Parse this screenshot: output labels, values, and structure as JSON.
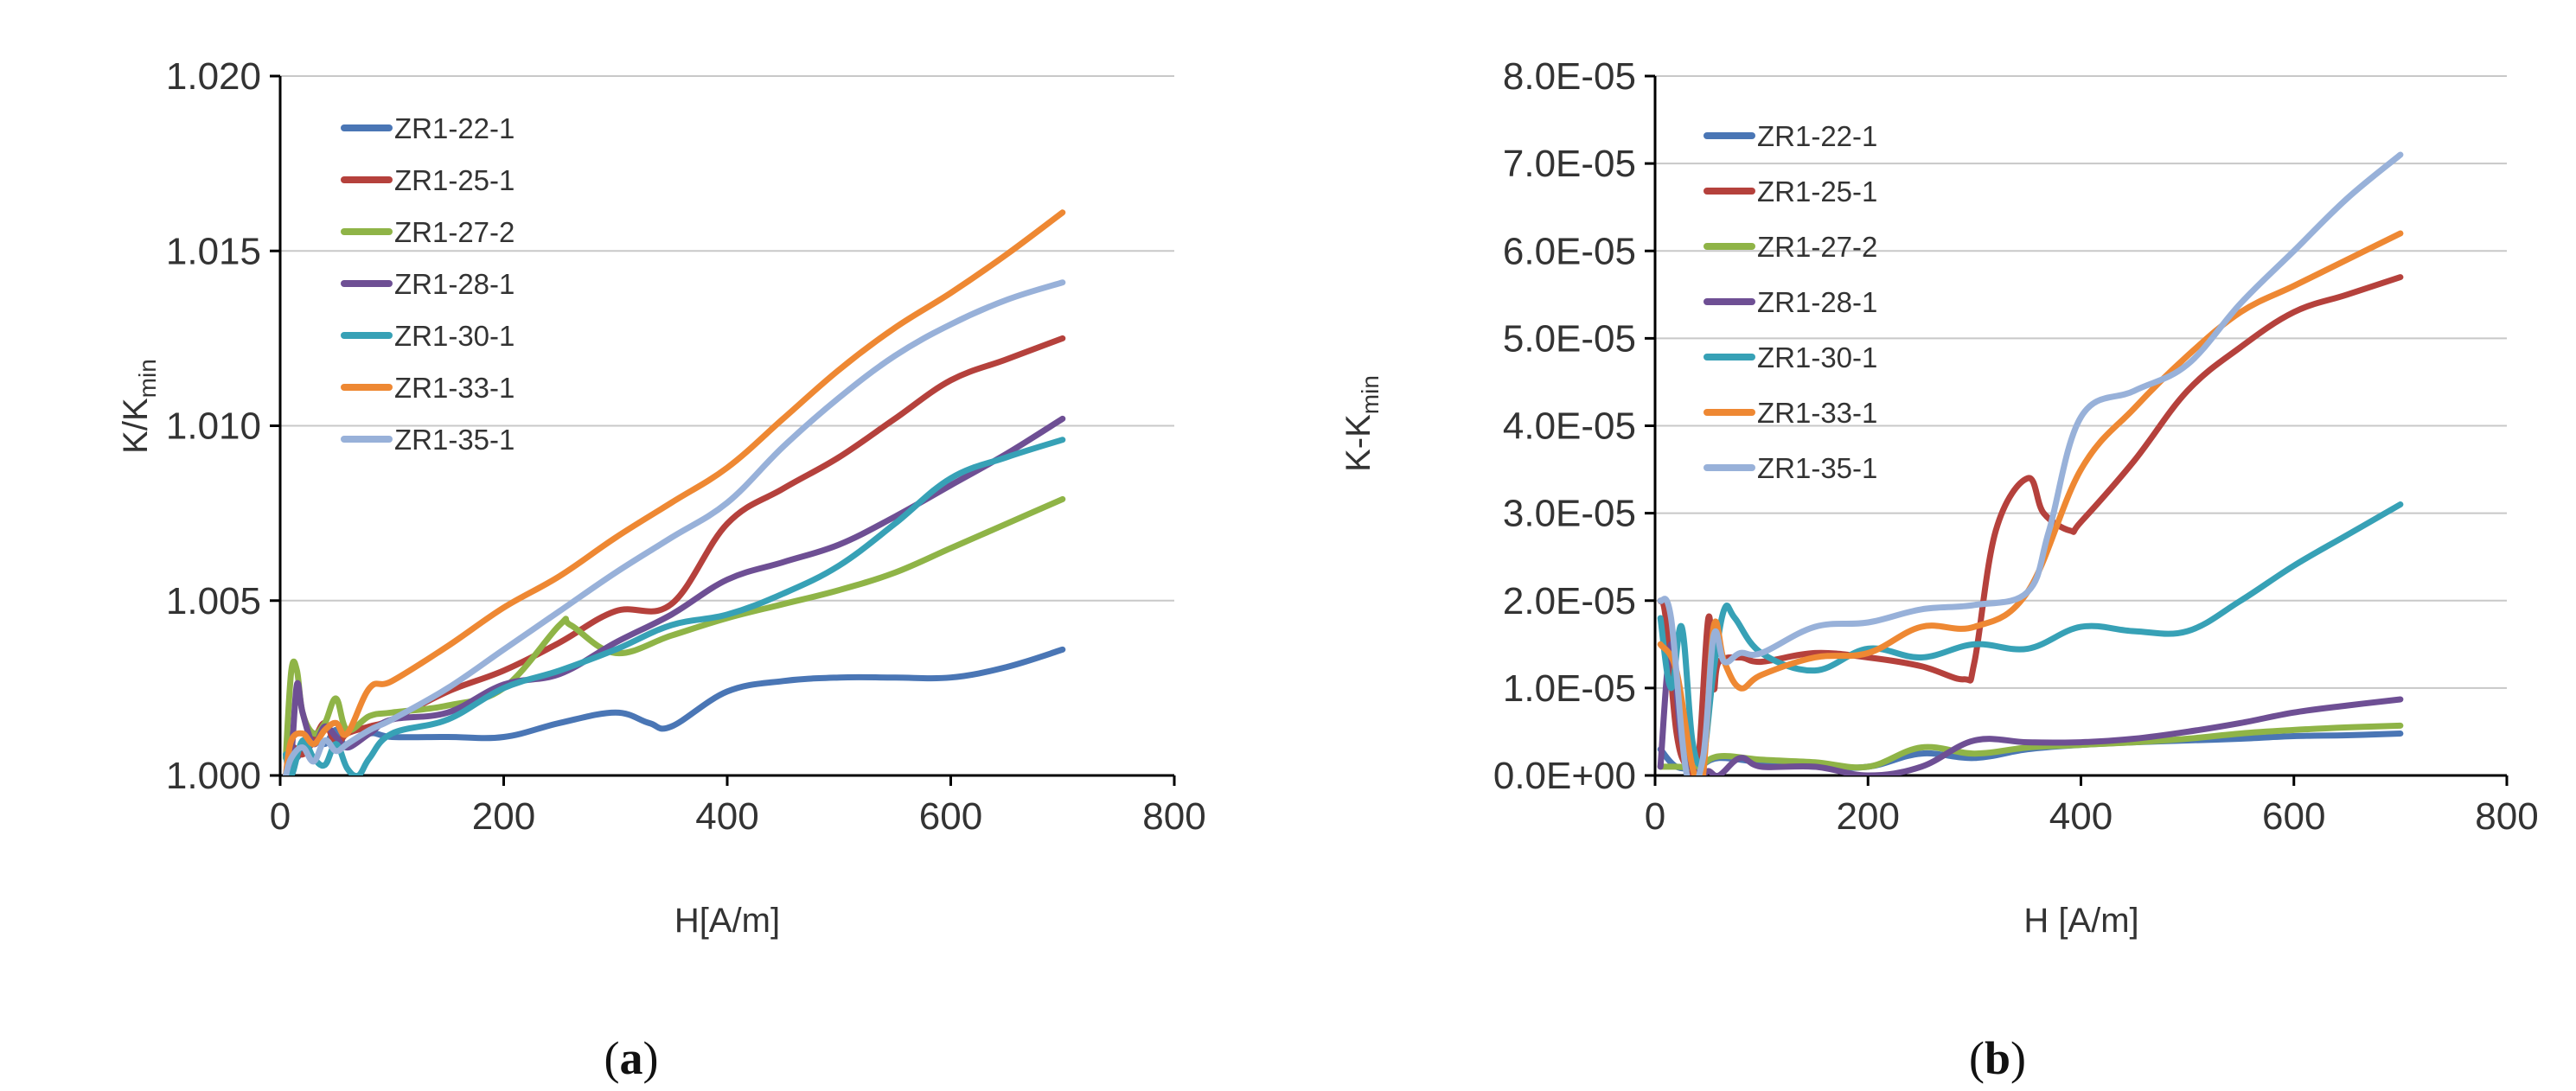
{
  "legend_labels": [
    "ZR1-22-1",
    "ZR1-25-1",
    "ZR1-27-2",
    "ZR1-28-1",
    "ZR1-30-1",
    "ZR1-33-1",
    "ZR1-35-1"
  ],
  "colors": {
    "ZR1-22-1": "#4a76b5",
    "ZR1-25-1": "#b5413c",
    "ZR1-27-2": "#8fb447",
    "ZR1-28-1": "#6e4f94",
    "ZR1-30-1": "#37a1b6",
    "ZR1-33-1": "#ee8833",
    "ZR1-35-1": "#98b1d9",
    "grid": "#c8c8c8",
    "axis": "#000000"
  },
  "chart_data": [
    {
      "id": "a",
      "type": "line",
      "caption": "a",
      "xlabel": "H[A/m]",
      "ylabel_main": "K/K",
      "ylabel_sub": "min",
      "xlim": [
        0,
        800
      ],
      "ylim": [
        1.0,
        1.02
      ],
      "xticks": [
        0,
        200,
        400,
        600,
        800
      ],
      "xtick_labels": [
        "0",
        "200",
        "400",
        "600",
        "800"
      ],
      "yticks": [
        1.0,
        1.005,
        1.01,
        1.015,
        1.02
      ],
      "ytick_labels": [
        "1.000",
        "1.005",
        "1.010",
        "1.015",
        "1.020"
      ],
      "grid": "horizontal",
      "series": [
        {
          "name": "ZR1-22-1",
          "x": [
            5,
            10,
            20,
            30,
            40,
            50,
            60,
            80,
            100,
            150,
            200,
            250,
            300,
            330,
            350,
            400,
            450,
            500,
            550,
            600,
            650,
            700
          ],
          "y": [
            1.0,
            1.0003,
            1.0007,
            1.0012,
            1.0009,
            1.0013,
            1.0008,
            1.0012,
            1.0011,
            1.0011,
            1.0011,
            1.0015,
            1.0018,
            1.0015,
            1.0014,
            1.0024,
            1.0027,
            1.0028,
            1.0028,
            1.0028,
            1.0031,
            1.0036
          ]
        },
        {
          "name": "ZR1-25-1",
          "x": [
            5,
            10,
            20,
            30,
            40,
            50,
            60,
            80,
            100,
            150,
            200,
            250,
            300,
            350,
            400,
            450,
            500,
            550,
            600,
            650,
            700
          ],
          "y": [
            1.0,
            1.0008,
            1.0006,
            1.001,
            1.0015,
            1.0009,
            1.0012,
            1.0014,
            1.0016,
            1.0024,
            1.003,
            1.0038,
            1.0047,
            1.0049,
            1.0072,
            1.0082,
            1.0091,
            1.0102,
            1.0113,
            1.0119,
            1.0125
          ]
        },
        {
          "name": "ZR1-27-2",
          "x": [
            5,
            10,
            15,
            20,
            30,
            40,
            50,
            60,
            80,
            100,
            150,
            200,
            250,
            260,
            300,
            350,
            400,
            450,
            500,
            550,
            600,
            650,
            700
          ],
          "y": [
            1.0005,
            1.003,
            1.003,
            1.0018,
            1.0012,
            1.0015,
            1.0022,
            1.0013,
            1.0017,
            1.0018,
            1.002,
            1.0025,
            1.0043,
            1.0043,
            1.0035,
            1.004,
            1.0045,
            1.0049,
            1.0053,
            1.0058,
            1.0065,
            1.0072,
            1.0079
          ]
        },
        {
          "name": "ZR1-28-1",
          "x": [
            5,
            10,
            15,
            20,
            30,
            40,
            50,
            60,
            80,
            100,
            150,
            200,
            250,
            300,
            350,
            400,
            450,
            500,
            550,
            600,
            650,
            700
          ],
          "y": [
            1.0,
            1.0006,
            1.0026,
            1.0018,
            1.0009,
            1.0014,
            1.0011,
            1.0008,
            1.0012,
            1.0016,
            1.0018,
            1.0026,
            1.0029,
            1.0038,
            1.0046,
            1.0056,
            1.0061,
            1.0066,
            1.0074,
            1.0083,
            1.0092,
            1.0102
          ]
        },
        {
          "name": "ZR1-30-1",
          "x": [
            5,
            10,
            20,
            30,
            40,
            50,
            60,
            70,
            80,
            100,
            150,
            200,
            250,
            300,
            350,
            400,
            450,
            500,
            550,
            600,
            650,
            700
          ],
          "y": [
            1.0006,
            1.0,
            1.001,
            1.0005,
            1.0003,
            1.0009,
            1.0002,
            1.0,
            1.0005,
            1.0012,
            1.0016,
            1.0025,
            1.003,
            1.0036,
            1.0043,
            1.0046,
            1.0052,
            1.006,
            1.0072,
            1.0085,
            1.0091,
            1.0096
          ]
        },
        {
          "name": "ZR1-33-1",
          "x": [
            5,
            10,
            20,
            30,
            40,
            50,
            60,
            80,
            100,
            150,
            200,
            250,
            300,
            350,
            400,
            450,
            500,
            550,
            600,
            650,
            700
          ],
          "y": [
            1.0,
            1.001,
            1.0012,
            1.0009,
            1.0013,
            1.0015,
            1.0012,
            1.0025,
            1.0027,
            1.0037,
            1.0048,
            1.0057,
            1.0068,
            1.0078,
            1.0088,
            1.0102,
            1.0116,
            1.0128,
            1.0138,
            1.0149,
            1.0161
          ]
        },
        {
          "name": "ZR1-35-1",
          "x": [
            5,
            10,
            20,
            30,
            40,
            50,
            60,
            80,
            100,
            150,
            200,
            250,
            300,
            350,
            400,
            450,
            500,
            550,
            600,
            650,
            700
          ],
          "y": [
            1.0,
            1.0005,
            1.0008,
            1.0004,
            1.001,
            1.0007,
            1.0009,
            1.0013,
            1.0016,
            1.0025,
            1.0036,
            1.0047,
            1.0058,
            1.0068,
            1.0078,
            1.0094,
            1.0108,
            1.012,
            1.0129,
            1.0136,
            1.0141
          ]
        }
      ]
    },
    {
      "id": "b",
      "type": "line",
      "caption": "b",
      "xlabel": "H [A/m]",
      "ylabel_main": "K-K",
      "ylabel_sub": "min",
      "xlim": [
        0,
        800
      ],
      "ylim": [
        0,
        8e-05
      ],
      "xticks": [
        0,
        200,
        400,
        600,
        800
      ],
      "xtick_labels": [
        "0",
        "200",
        "400",
        "600",
        "800"
      ],
      "yticks": [
        0,
        1e-05,
        2e-05,
        3e-05,
        4e-05,
        5e-05,
        6e-05,
        7e-05,
        8e-05
      ],
      "ytick_labels": [
        "0.0E+00",
        "1.0E-05",
        "2.0E-05",
        "3.0E-05",
        "4.0E-05",
        "5.0E-05",
        "6.0E-05",
        "7.0E-05",
        "8.0E-05"
      ],
      "grid": "horizontal",
      "series": [
        {
          "name": "ZR1-22-1",
          "x": [
            5,
            20,
            40,
            60,
            100,
            150,
            200,
            250,
            300,
            350,
            400,
            450,
            500,
            550,
            600,
            650,
            700
          ],
          "y": [
            3e-06,
            1e-06,
            1e-06,
            2e-06,
            1.5e-06,
            1e-06,
            1e-06,
            2.5e-06,
            2e-06,
            3e-06,
            3.5e-06,
            3.8e-06,
            4e-06,
            4.2e-06,
            4.5e-06,
            4.6e-06,
            4.8e-06
          ]
        },
        {
          "name": "ZR1-25-1",
          "x": [
            5,
            10,
            20,
            30,
            40,
            50,
            55,
            60,
            80,
            100,
            150,
            200,
            250,
            290,
            300,
            320,
            350,
            365,
            390,
            400,
            450,
            500,
            550,
            600,
            650,
            700
          ],
          "y": [
            2e-05,
            1.8e-05,
            5e-06,
            1e-06,
            1e-06,
            1.8e-05,
            1e-05,
            1.3e-05,
            1.35e-05,
            1.3e-05,
            1.4e-05,
            1.35e-05,
            1.25e-05,
            1.1e-05,
            1.3e-05,
            2.8e-05,
            3.4e-05,
            3e-05,
            2.8e-05,
            2.9e-05,
            3.6e-05,
            4.4e-05,
            4.9e-05,
            5.3e-05,
            5.5e-05,
            5.7e-05
          ]
        },
        {
          "name": "ZR1-27-2",
          "x": [
            5,
            20,
            40,
            60,
            100,
            150,
            200,
            250,
            300,
            350,
            400,
            450,
            500,
            550,
            600,
            650,
            700
          ],
          "y": [
            1e-06,
            1e-06,
            1e-06,
            2.2e-06,
            1.8e-06,
            1.5e-06,
            1e-06,
            3.2e-06,
            2.5e-06,
            3.2e-06,
            3.5e-06,
            3.8e-06,
            4.2e-06,
            4.8e-06,
            5.2e-06,
            5.5e-06,
            5.7e-06
          ]
        },
        {
          "name": "ZR1-28-1",
          "x": [
            5,
            15,
            25,
            40,
            50,
            60,
            80,
            100,
            150,
            200,
            250,
            300,
            350,
            400,
            450,
            500,
            550,
            600,
            650,
            700
          ],
          "y": [
            1e-06,
            1.5e-05,
            4e-06,
            0,
            5e-07,
            0,
            2e-06,
            1e-06,
            1e-06,
            0,
            1e-06,
            4e-06,
            3.8e-06,
            3.8e-06,
            4.2e-06,
            5e-06,
            6e-06,
            7.2e-06,
            8e-06,
            8.7e-06
          ]
        },
        {
          "name": "ZR1-30-1",
          "x": [
            5,
            15,
            25,
            35,
            45,
            55,
            65,
            75,
            100,
            150,
            200,
            250,
            300,
            350,
            400,
            450,
            500,
            550,
            600,
            650,
            700
          ],
          "y": [
            1.8e-05,
            1e-05,
            1.7e-05,
            4e-06,
            2e-06,
            1.2e-05,
            1.9e-05,
            1.8e-05,
            1.4e-05,
            1.2e-05,
            1.45e-05,
            1.35e-05,
            1.5e-05,
            1.45e-05,
            1.7e-05,
            1.65e-05,
            1.65e-05,
            2e-05,
            2.4e-05,
            2.75e-05,
            3.1e-05
          ]
        },
        {
          "name": "ZR1-33-1",
          "x": [
            5,
            20,
            35,
            45,
            55,
            65,
            80,
            100,
            150,
            200,
            250,
            300,
            350,
            400,
            450,
            500,
            550,
            600,
            650,
            700
          ],
          "y": [
            1.5e-05,
            1.2e-05,
            1e-06,
            0,
            1.7e-05,
            1.3e-05,
            1e-05,
            1.15e-05,
            1.35e-05,
            1.4e-05,
            1.7e-05,
            1.7e-05,
            2.1e-05,
            3.5e-05,
            4.2e-05,
            4.8e-05,
            5.3e-05,
            5.6e-05,
            5.9e-05,
            6.2e-05
          ]
        },
        {
          "name": "ZR1-35-1",
          "x": [
            5,
            15,
            30,
            45,
            55,
            65,
            80,
            100,
            150,
            200,
            250,
            300,
            350,
            370,
            400,
            450,
            500,
            550,
            600,
            650,
            700
          ],
          "y": [
            2e-05,
            1.8e-05,
            0,
            2e-06,
            1.6e-05,
            1.3e-05,
            1.4e-05,
            1.4e-05,
            1.7e-05,
            1.75e-05,
            1.9e-05,
            1.95e-05,
            2.1e-05,
            2.8e-05,
            4.1e-05,
            4.4e-05,
            4.7e-05,
            5.4e-05,
            6e-05,
            6.6e-05,
            7.1e-05
          ]
        }
      ]
    }
  ]
}
